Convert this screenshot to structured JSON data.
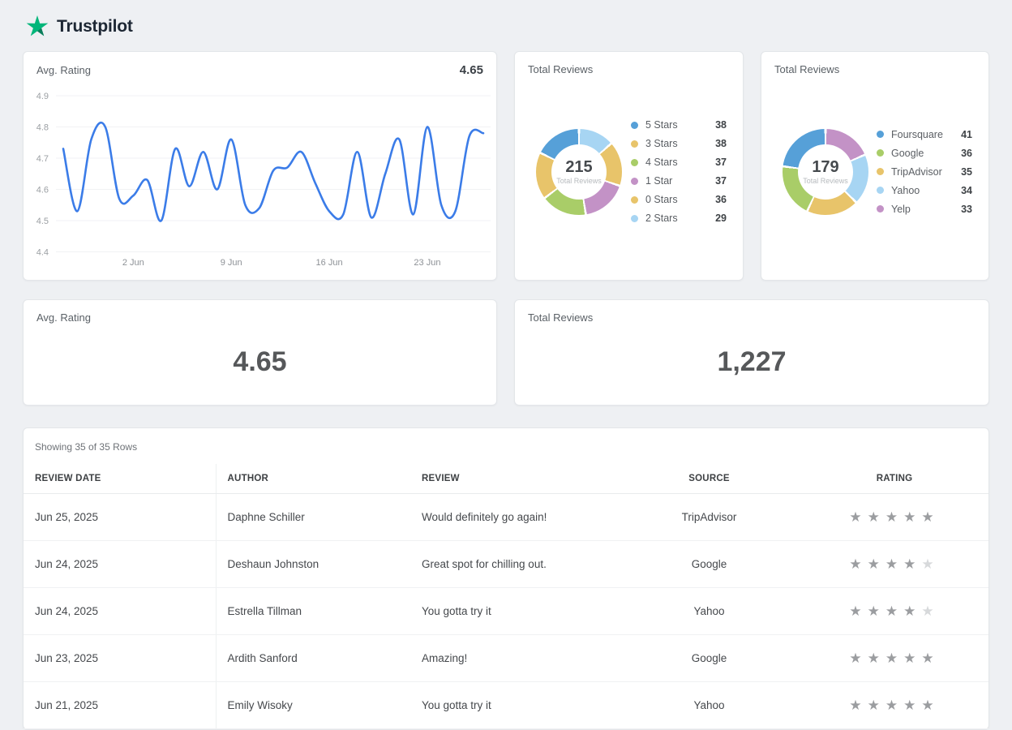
{
  "brand": {
    "name": "Trustpilot",
    "star_color": "#00b67a",
    "star_dark_color": "#0c7d5b",
    "text_color": "#1d2734"
  },
  "cards": {
    "avg_rating_chart": {
      "title": "Avg. Rating",
      "value": "4.65"
    },
    "stars_donut": {
      "title": "Total Reviews",
      "center_value": "215",
      "center_label": "Total Reviews"
    },
    "sources_donut": {
      "title": "Total Reviews",
      "center_value": "179",
      "center_label": "Total Reviews"
    },
    "avg_rating_summary": {
      "title": "Avg. Rating",
      "value": "4.65"
    },
    "total_reviews_summary": {
      "title": "Total Reviews",
      "value": "1,227"
    }
  },
  "chart_data": [
    {
      "id": "avg-rating-trend",
      "type": "line",
      "title": "Avg. Rating",
      "current_value": 4.65,
      "values": [
        4.73,
        4.53,
        4.76,
        4.8,
        4.57,
        4.58,
        4.63,
        4.5,
        4.73,
        4.61,
        4.72,
        4.6,
        4.76,
        4.55,
        4.54,
        4.66,
        4.67,
        4.72,
        4.62,
        4.53,
        4.52,
        4.72,
        4.51,
        4.65,
        4.76,
        4.52,
        4.8,
        4.55,
        4.53,
        4.77,
        4.78
      ],
      "x_tick_labels": [
        "2 Jun",
        "9 Jun",
        "16 Jun",
        "23 Jun"
      ],
      "x_tick_indices": [
        5,
        12,
        19,
        26
      ],
      "y_ticks": [
        4.9,
        4.8,
        4.7,
        4.6,
        4.5,
        4.4
      ],
      "ylim": [
        4.4,
        4.9
      ],
      "line_color": "#3b7ce8",
      "grid": true,
      "legend_position": "none"
    },
    {
      "id": "reviews-by-stars",
      "type": "pie",
      "title": "Total Reviews",
      "total": 215,
      "center_label": "Total Reviews",
      "legend_position": "right",
      "items": [
        {
          "label": "5 Stars",
          "value": 38,
          "color": "#56a0d8"
        },
        {
          "label": "3 Stars",
          "value": 38,
          "color": "#e8c46a"
        },
        {
          "label": "4 Stars",
          "value": 37,
          "color": "#a9cd68"
        },
        {
          "label": "1 Star",
          "value": 37,
          "color": "#c392c6"
        },
        {
          "label": "0 Stars",
          "value": 36,
          "color": "#e8c46a"
        },
        {
          "label": "2 Stars",
          "value": 29,
          "color": "#a7d5f3"
        }
      ]
    },
    {
      "id": "reviews-by-source",
      "type": "pie",
      "title": "Total Reviews",
      "total": 179,
      "center_label": "Total Reviews",
      "legend_position": "right",
      "items": [
        {
          "label": "Foursquare",
          "value": 41,
          "color": "#56a0d8"
        },
        {
          "label": "Google",
          "value": 36,
          "color": "#a9cd68"
        },
        {
          "label": "TripAdvisor",
          "value": 35,
          "color": "#e8c46a"
        },
        {
          "label": "Yahoo",
          "value": 34,
          "color": "#a7d5f3"
        },
        {
          "label": "Yelp",
          "value": 33,
          "color": "#c392c6"
        }
      ]
    }
  ],
  "table": {
    "status": "Showing 35 of 35 Rows",
    "columns": [
      "REVIEW DATE",
      "AUTHOR",
      "REVIEW",
      "SOURCE",
      "RATING"
    ],
    "rating_max": 5,
    "star_filled_color": "#9b9da0",
    "star_empty_color": "#d7d9db",
    "rows": [
      {
        "review_date": "Jun 25, 2025",
        "author": "Daphne Schiller",
        "review": "Would definitely go again!",
        "source": "TripAdvisor",
        "rating": 5
      },
      {
        "review_date": "Jun 24, 2025",
        "author": "Deshaun Johnston",
        "review": "Great spot for chilling out.",
        "source": "Google",
        "rating": 4
      },
      {
        "review_date": "Jun 24, 2025",
        "author": "Estrella Tillman",
        "review": "You gotta try it",
        "source": "Yahoo",
        "rating": 4
      },
      {
        "review_date": "Jun 23, 2025",
        "author": "Ardith Sanford",
        "review": "Amazing!",
        "source": "Google",
        "rating": 5
      },
      {
        "review_date": "Jun 21, 2025",
        "author": "Emily Wisoky",
        "review": "You gotta try it",
        "source": "Yahoo",
        "rating": 5
      }
    ]
  }
}
